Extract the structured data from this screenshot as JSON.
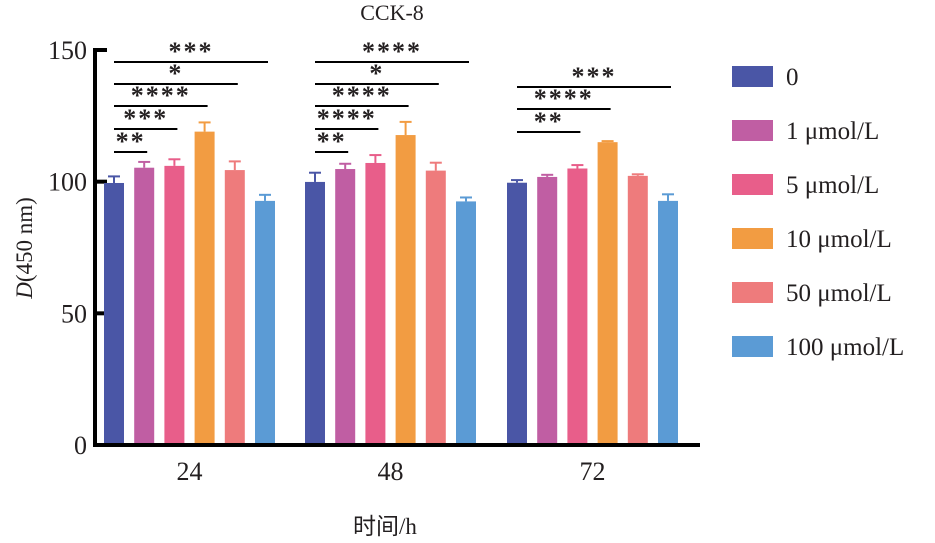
{
  "chart_data": {
    "type": "bar",
    "title": "CCK-8",
    "xlabel": "时间/h",
    "ylabel_italic": "D",
    "ylabel_rest": "(450 nm)",
    "ylim": [
      0,
      150
    ],
    "yticks": [
      0,
      50,
      100,
      150
    ],
    "categories": [
      "24",
      "48",
      "72"
    ],
    "legend_position": "right",
    "series": [
      {
        "name": "0",
        "color": "#4a56a6",
        "values": [
          99.5,
          99.9,
          99.6
        ],
        "errors": [
          2.5,
          3.5,
          1.0
        ]
      },
      {
        "name": "1 μmol/L",
        "color": "#c05ea3",
        "values": [
          105.3,
          104.8,
          101.8
        ],
        "errors": [
          2.2,
          2.0,
          0.8
        ]
      },
      {
        "name": "5 μmol/L",
        "color": "#e85e8a",
        "values": [
          106.0,
          107.1,
          105.0
        ],
        "errors": [
          2.5,
          3.0,
          1.3
        ]
      },
      {
        "name": "10 μmol/L",
        "color": "#f29c42",
        "values": [
          119.0,
          117.7,
          115.0
        ],
        "errors": [
          3.5,
          5.0,
          0.4
        ]
      },
      {
        "name": "50 μmol/L",
        "color": "#ee7b7c",
        "values": [
          104.4,
          104.2,
          102.2
        ],
        "errors": [
          3.3,
          3.0,
          0.6
        ]
      },
      {
        "name": "100 μmol/L",
        "color": "#5b9bd5",
        "values": [
          92.7,
          92.5,
          92.7
        ],
        "errors": [
          2.3,
          1.5,
          2.5
        ]
      }
    ],
    "significance": [
      {
        "category": "24",
        "from": "0",
        "to": "1 μmol/L",
        "label": "**"
      },
      {
        "category": "24",
        "from": "0",
        "to": "5 μmol/L",
        "label": "***"
      },
      {
        "category": "24",
        "from": "0",
        "to": "10 μmol/L",
        "label": "****"
      },
      {
        "category": "24",
        "from": "0",
        "to": "50 μmol/L",
        "label": "*"
      },
      {
        "category": "24",
        "from": "0",
        "to": "100 μmol/L",
        "label": "***"
      },
      {
        "category": "48",
        "from": "0",
        "to": "1 μmol/L",
        "label": "**"
      },
      {
        "category": "48",
        "from": "0",
        "to": "5 μmol/L",
        "label": "****"
      },
      {
        "category": "48",
        "from": "0",
        "to": "10 μmol/L",
        "label": "****"
      },
      {
        "category": "48",
        "from": "0",
        "to": "50 μmol/L",
        "label": "*"
      },
      {
        "category": "48",
        "from": "0",
        "to": "100 μmol/L",
        "label": "****"
      },
      {
        "category": "72",
        "from": "0",
        "to": "5 μmol/L",
        "label": "**"
      },
      {
        "category": "72",
        "from": "0",
        "to": "10 μmol/L",
        "label": "****"
      },
      {
        "category": "72",
        "from": "0",
        "to": "100 μmol/L",
        "label": "***"
      }
    ]
  }
}
